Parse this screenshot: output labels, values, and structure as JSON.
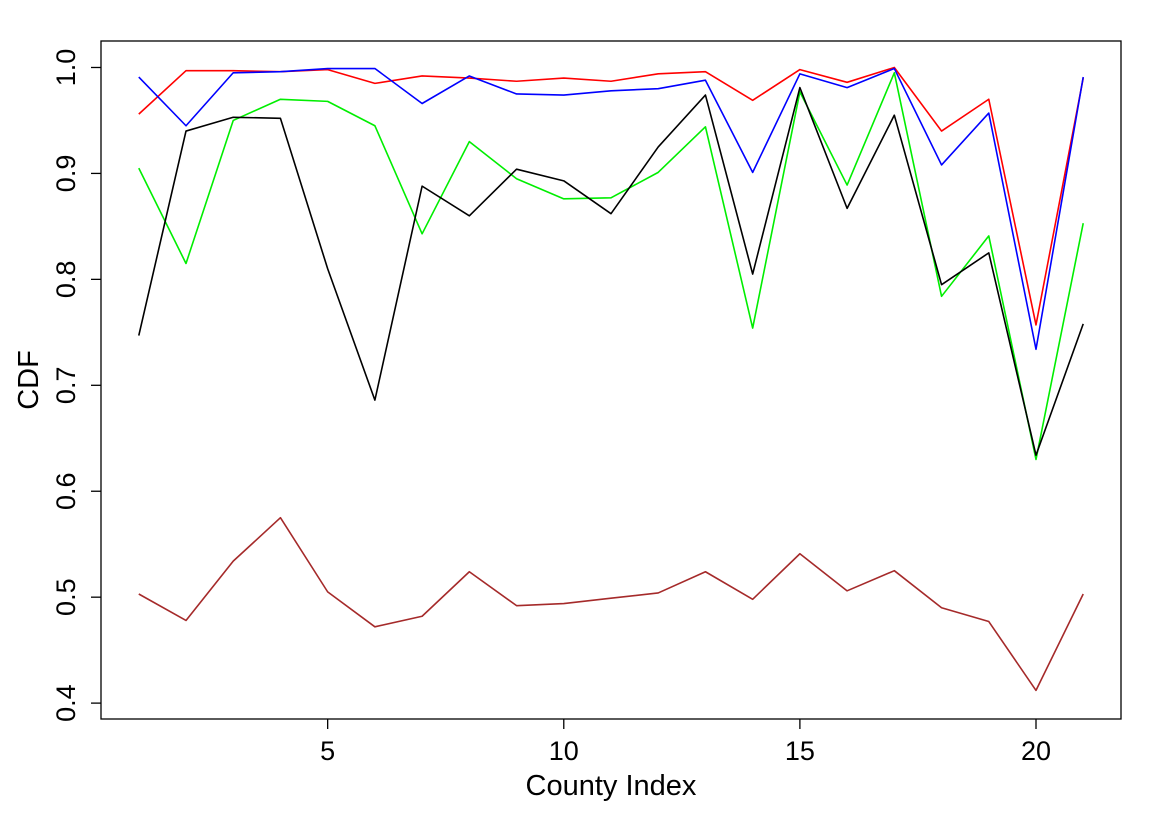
{
  "chart_data": {
    "type": "line",
    "title": "",
    "xlabel": "County Index",
    "ylabel": "CDF",
    "xlim": [
      0.2,
      21.8
    ],
    "ylim": [
      0.385,
      1.025
    ],
    "x_ticks": [
      5,
      10,
      15,
      20
    ],
    "x_tick_labels": [
      "5",
      "10",
      "15",
      "20"
    ],
    "y_ticks": [
      0.4,
      0.5,
      0.6,
      0.7,
      0.8,
      0.9,
      1.0
    ],
    "y_tick_labels": [
      "0.4",
      "0.5",
      "0.6",
      "0.7",
      "0.8",
      "0.9",
      "1.0"
    ],
    "grid": false,
    "legend": "none",
    "x": [
      1,
      2,
      3,
      4,
      5,
      6,
      7,
      8,
      9,
      10,
      11,
      12,
      13,
      14,
      15,
      16,
      17,
      18,
      19,
      20,
      21
    ],
    "series": [
      {
        "color": "#ff0000",
        "values": [
          0.956,
          0.997,
          0.997,
          0.996,
          0.998,
          0.985,
          0.992,
          0.99,
          0.987,
          0.99,
          0.987,
          0.994,
          0.996,
          0.969,
          0.998,
          0.986,
          1.0,
          0.94,
          0.97,
          0.757,
          0.99
        ]
      },
      {
        "color": "#0000ff",
        "values": [
          0.991,
          0.945,
          0.995,
          0.996,
          0.999,
          0.999,
          0.966,
          0.992,
          0.975,
          0.974,
          0.978,
          0.98,
          0.988,
          0.901,
          0.994,
          0.981,
          0.999,
          0.908,
          0.957,
          0.734,
          0.991
        ]
      },
      {
        "color": "#00ee00",
        "values": [
          0.905,
          0.815,
          0.95,
          0.97,
          0.968,
          0.945,
          0.843,
          0.93,
          0.895,
          0.876,
          0.877,
          0.901,
          0.944,
          0.754,
          0.977,
          0.889,
          0.995,
          0.784,
          0.841,
          0.63,
          0.853
        ]
      },
      {
        "color": "#000000",
        "values": [
          0.747,
          0.94,
          0.953,
          0.952,
          0.81,
          0.686,
          0.888,
          0.86,
          0.904,
          0.893,
          0.862,
          0.925,
          0.974,
          0.805,
          0.981,
          0.867,
          0.955,
          0.795,
          0.825,
          0.634,
          0.758
        ]
      },
      {
        "color": "#a52a2a",
        "values": [
          0.503,
          0.478,
          0.534,
          0.575,
          0.505,
          0.472,
          0.482,
          0.524,
          0.492,
          0.494,
          0.499,
          0.504,
          0.524,
          0.498,
          0.541,
          0.506,
          0.525,
          0.49,
          0.477,
          0.412,
          0.503
        ]
      }
    ]
  }
}
